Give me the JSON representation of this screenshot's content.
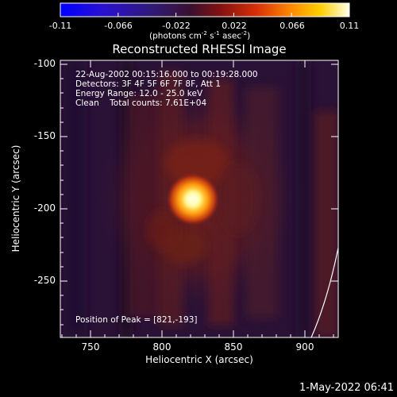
{
  "colorbar": {
    "ticks": [
      "-0.11",
      "-0.066",
      "-0.022",
      "0.022",
      "0.066",
      "0.11"
    ],
    "units_prefix": "(photons cm",
    "units_sup1": "-2",
    "units_mid": " s",
    "units_sup2": "-1",
    "units_mid2": " asec",
    "units_sup3": "-2",
    "units_suffix": ")"
  },
  "title": "Reconstructed RHESSI Image",
  "info": {
    "line1": "22-Aug-2002 00:15:16.000 to 00:19:28.000",
    "line2": "Detectors: 3F 4F 5F 6F 7F 8F, Att 1",
    "line3": "Energy Range: 12.0 - 25.0 keV",
    "line4": "Clean    Total counts: 7.61E+04"
  },
  "peak_text": "Position of Peak = [821,-193]",
  "axes": {
    "xlabel": "Heliocentric X (arcsec)",
    "ylabel": "Heliocentric Y (arcsec)",
    "xticks": [
      "750",
      "800",
      "850",
      "900"
    ],
    "yticks": [
      "-100",
      "-150",
      "-200",
      "-250"
    ]
  },
  "timestamp": "1-May-2022 06:41",
  "colors": {
    "background": "#000000",
    "plot_background": "#2a1236",
    "peak_core": "#ffffa0",
    "text": "#ffffff"
  }
}
